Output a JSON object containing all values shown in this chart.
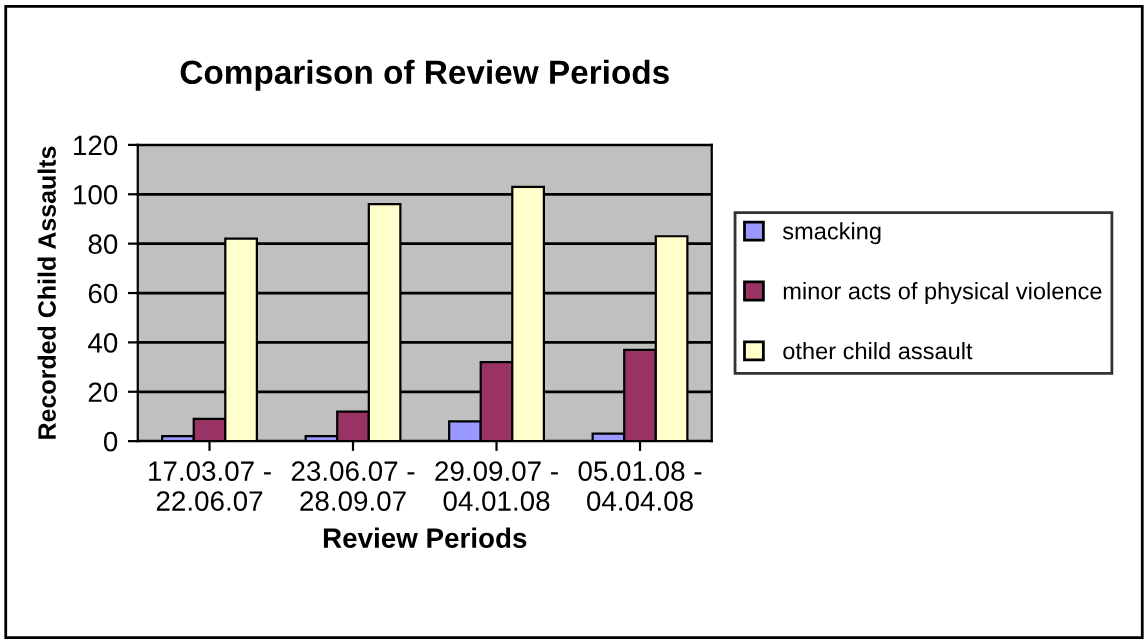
{
  "chart_data": {
    "type": "bar",
    "title": "Comparison of Review Periods",
    "xlabel": "Review Periods",
    "ylabel": "Recorded Child Assaults",
    "categories": [
      "17.03.07 -\n22.06.07",
      "23.06.07 -\n28.09.07",
      "29.09.07 -\n04.01.08",
      "05.01.08 -\n04.04.08"
    ],
    "series": [
      {
        "name": "smacking",
        "color": "#9999ff",
        "values": [
          2,
          2,
          8,
          3
        ]
      },
      {
        "name": "minor acts of physical violence",
        "color": "#993366",
        "values": [
          9,
          12,
          32,
          37
        ]
      },
      {
        "name": "other child assault",
        "color": "#ffffcc",
        "values": [
          82,
          96,
          103,
          83
        ]
      }
    ],
    "ylim": [
      0,
      120
    ],
    "yticks": [
      0,
      20,
      40,
      60,
      80,
      100,
      120
    ],
    "grid": "y",
    "legend": "right"
  }
}
